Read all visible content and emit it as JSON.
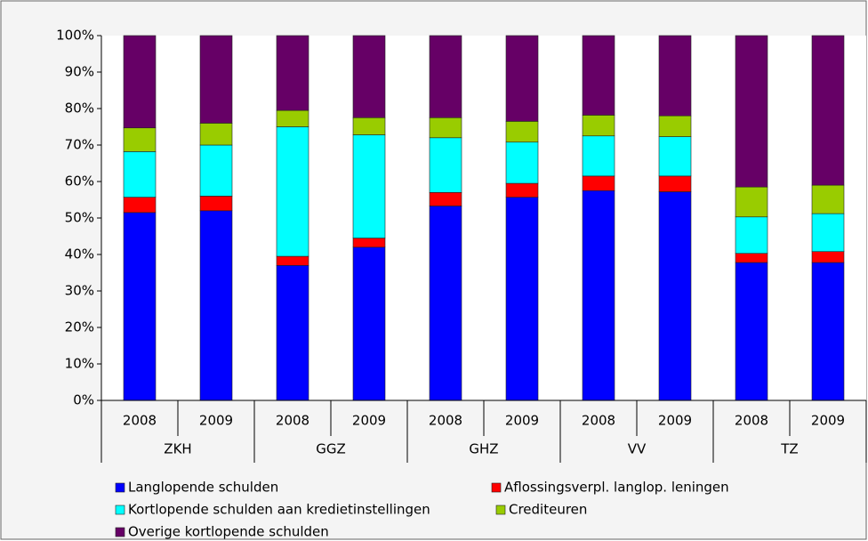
{
  "chart_data": {
    "type": "stacked-bar-percent",
    "categories": [
      "2008",
      "2009",
      "2008",
      "2009",
      "2008",
      "2009",
      "2008",
      "2009",
      "2008",
      "2009"
    ],
    "groups": [
      "ZKH",
      "GGZ",
      "GHZ",
      "VV",
      "TZ"
    ],
    "series": [
      {
        "name": "Langlopende schulden",
        "color": "#0000ff",
        "values": [
          51.5,
          52,
          37,
          42,
          53.3,
          55.7,
          57.5,
          57.2,
          37.8,
          37.8
        ]
      },
      {
        "name": "Aflossingsverpl. langlop. leningen",
        "color": "#ff0000",
        "values": [
          4.2,
          4,
          2.5,
          2.5,
          3.7,
          3.8,
          4,
          4.3,
          2.5,
          3
        ]
      },
      {
        "name": "Kortlopende schulden aan kredietinstellingen",
        "color": "#00ffff",
        "values": [
          12.5,
          14,
          35.5,
          28.3,
          15,
          11.3,
          11,
          10.8,
          10,
          10.4
        ]
      },
      {
        "name": "Crediteuren",
        "color": "#99cc00",
        "values": [
          6.5,
          6,
          4.5,
          4.7,
          5.5,
          5.7,
          5.7,
          5.7,
          8.2,
          7.8
        ]
      },
      {
        "name": "Overige kortlopende schulden",
        "color": "#660066",
        "values": [
          25.3,
          24,
          20.5,
          22.5,
          22.5,
          23.5,
          21.8,
          22,
          41.5,
          41
        ]
      }
    ],
    "ylim": [
      0,
      100
    ],
    "yticks": [
      {
        "value": 0,
        "label": "0%"
      },
      {
        "value": 10,
        "label": "10%"
      },
      {
        "value": 20,
        "label": "20%"
      },
      {
        "value": 30,
        "label": "30%"
      },
      {
        "value": 40,
        "label": "40%"
      },
      {
        "value": 50,
        "label": "50%"
      },
      {
        "value": 60,
        "label": "60%"
      },
      {
        "value": 70,
        "label": "70%"
      },
      {
        "value": 80,
        "label": "80%"
      },
      {
        "value": 90,
        "label": "90%"
      },
      {
        "value": 100,
        "label": "100%"
      }
    ],
    "grid": false
  }
}
